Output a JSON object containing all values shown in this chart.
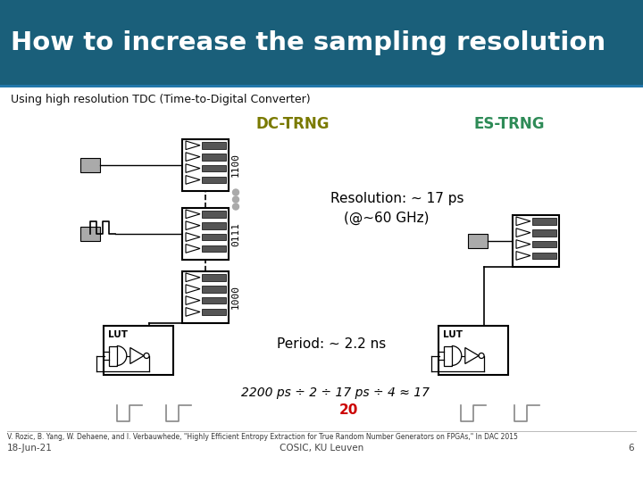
{
  "title": "How to increase the sampling resolution",
  "subtitle": "Using high resolution TDC (Time-to-Digital Converter)",
  "header_bg": "#1a5f7a",
  "header_text_color": "#ffffff",
  "bg_color": "#ffffff",
  "dc_trng_label": "DC-TRNG",
  "dc_trng_color": "#7a7a00",
  "es_trng_label": "ES-TRNG",
  "es_trng_color": "#2e8b57",
  "resolution_text": "Resolution: ∼ 17 ps",
  "freq_text": "(@∼60 GHz)",
  "period_text": "Period: ∼ 2.2 ns",
  "formula_text": "2200 ps ÷ 2 ÷ 17 ps ÷ 4 ≈ 17",
  "formula_color": "#000000",
  "number_20": "20",
  "number_20_color": "#cc0000",
  "lut_label": "LUT",
  "bits_top": "1100",
  "bits_mid": "0111",
  "bits_bot": "1000",
  "ref_author": "V. Rozic, B. Yang, W. Dehaene, and I. Verbauwhede, \"Highly Efficient Entropy Extraction for True Random Number Generators on FPGAs,\" In DAC 2015",
  "ref_date": "18-Jun-21",
  "ref_inst": "COSIC, KU Leuven",
  "ref_page": "6",
  "dot_color": "#aaaaaa"
}
